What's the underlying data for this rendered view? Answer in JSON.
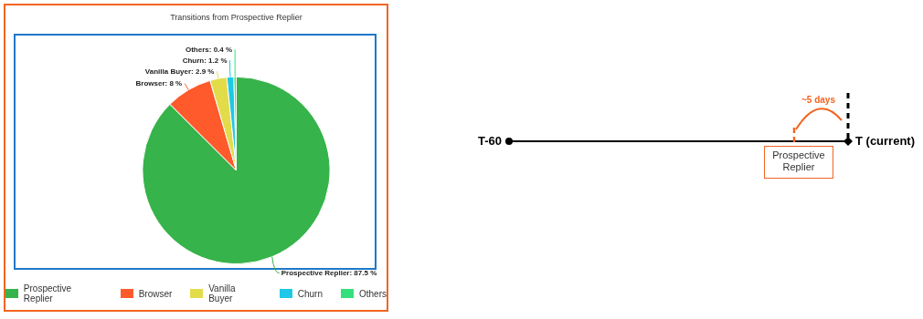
{
  "chart_data": [
    {
      "type": "pie",
      "title": "Transitions from Prospective Replier",
      "categories": [
        "Prospective Replier",
        "Browser",
        "Vanilla Buyer",
        "Churn",
        "Others"
      ],
      "values": [
        87.5,
        8,
        2.9,
        1.2,
        0.4
      ],
      "colors": [
        "#36b34a",
        "#ff5a2b",
        "#e2dc4b",
        "#1ec8e6",
        "#34e07c"
      ],
      "value_labels": [
        "Prospective Replier: 87.5 %",
        "Browser: 8 %",
        "Vanilla Buyer: 2.9 %",
        "Churn: 1.2 %",
        "Others: 0.4 %"
      ],
      "legend": "bottom"
    },
    {
      "type": "other",
      "annotations": [
        "T-60",
        "T (current)",
        "~5 days",
        "Prospective Replier"
      ]
    }
  ]
}
